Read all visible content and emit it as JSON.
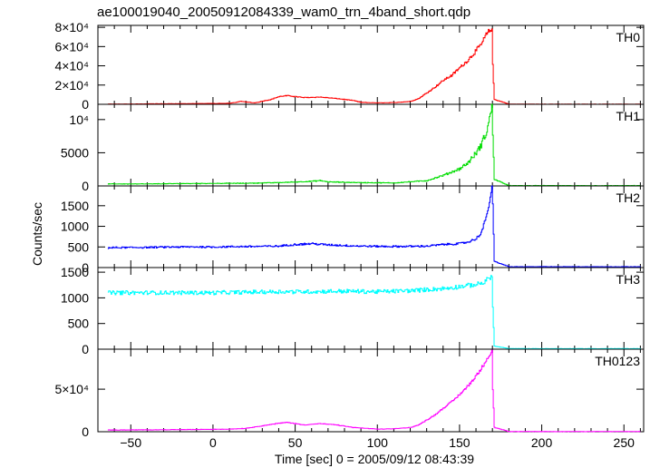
{
  "figure": {
    "title": "ae100019040_20050912084339_wam0_trn_4band_short.qdp",
    "xlabel": "Time [sec] 0 = 2005/09/12 08:43:39",
    "ylabel": "Counts/sec"
  },
  "chart_data": [
    {
      "type": "line",
      "panel_label": "TH0",
      "color": "#ff0000",
      "xlim": [
        -70,
        262
      ],
      "ylim": [
        0,
        82000
      ],
      "yticks": [
        {
          "v": 0,
          "t": "0"
        },
        {
          "v": 20000,
          "t": "2×10⁴"
        },
        {
          "v": 40000,
          "t": "4×10⁴"
        },
        {
          "v": 60000,
          "t": "6×10⁴"
        },
        {
          "v": 80000,
          "t": "8×10⁴"
        }
      ],
      "x": [
        -64,
        -40,
        -20,
        0,
        10,
        17,
        25,
        35,
        40,
        45,
        55,
        65,
        75,
        85,
        90,
        100,
        110,
        120,
        125,
        130,
        135,
        140,
        145,
        150,
        155,
        160,
        163,
        166,
        168,
        169.5,
        170,
        171,
        180,
        200,
        220,
        240,
        260
      ],
      "y": [
        200,
        400,
        600,
        800,
        1000,
        3000,
        1500,
        5000,
        8000,
        9000,
        7000,
        7500,
        6000,
        4000,
        2000,
        1500,
        1800,
        3000,
        6000,
        12000,
        18000,
        25000,
        30000,
        38000,
        46000,
        56000,
        62000,
        72000,
        76000,
        80000,
        40000,
        5000,
        200,
        100,
        100,
        100,
        100
      ],
      "noise": 0.04
    },
    {
      "type": "line",
      "panel_label": "TH1",
      "color": "#00dd00",
      "xlim": [
        -70,
        262
      ],
      "ylim": [
        0,
        12300
      ],
      "yticks": [
        {
          "v": 0,
          "t": "0"
        },
        {
          "v": 5000,
          "t": "5000"
        },
        {
          "v": 10000,
          "t": "10⁴"
        }
      ],
      "x": [
        -64,
        -40,
        -20,
        0,
        20,
        40,
        60,
        65,
        70,
        90,
        110,
        130,
        140,
        150,
        155,
        160,
        163,
        166,
        168,
        169.5,
        170,
        171,
        180,
        200,
        220,
        240,
        260
      ],
      "y": [
        300,
        300,
        350,
        380,
        400,
        500,
        700,
        800,
        600,
        500,
        450,
        800,
        1600,
        2600,
        3500,
        5000,
        6200,
        8000,
        10000,
        12000,
        8000,
        1000,
        50,
        50,
        50,
        50,
        50
      ],
      "noise": 0.08
    },
    {
      "type": "line",
      "panel_label": "TH2",
      "color": "#0000ff",
      "xlim": [
        -70,
        262
      ],
      "ylim": [
        0,
        1980
      ],
      "yticks": [
        {
          "v": 0,
          "t": "0"
        },
        {
          "v": 500,
          "t": "500"
        },
        {
          "v": 1000,
          "t": "1000"
        },
        {
          "v": 1500,
          "t": "1500"
        }
      ],
      "x": [
        -64,
        -40,
        -20,
        0,
        20,
        40,
        50,
        60,
        70,
        90,
        110,
        130,
        140,
        150,
        155,
        160,
        163,
        166,
        168,
        169.5,
        170,
        171,
        180,
        200,
        220,
        240,
        260
      ],
      "y": [
        480,
        490,
        500,
        500,
        510,
        520,
        560,
        580,
        550,
        520,
        510,
        520,
        560,
        580,
        620,
        700,
        850,
        1200,
        1600,
        1950,
        1500,
        150,
        20,
        20,
        20,
        20,
        20
      ],
      "noise": 0.04
    },
    {
      "type": "line",
      "panel_label": "TH3",
      "color": "#00ffff",
      "xlim": [
        -70,
        262
      ],
      "ylim": [
        0,
        1590
      ],
      "yticks": [
        {
          "v": 0,
          "t": "0"
        },
        {
          "v": 500,
          "t": "500"
        },
        {
          "v": 1000,
          "t": "1000"
        },
        {
          "v": 1500,
          "t": "1500"
        }
      ],
      "x": [
        -64,
        -40,
        -20,
        0,
        20,
        40,
        60,
        80,
        100,
        120,
        140,
        150,
        160,
        165,
        168,
        169.5,
        170,
        171,
        180,
        200,
        220,
        240,
        260
      ],
      "y": [
        1100,
        1100,
        1100,
        1100,
        1110,
        1120,
        1120,
        1130,
        1120,
        1140,
        1180,
        1220,
        1260,
        1300,
        1400,
        1420,
        800,
        60,
        10,
        10,
        10,
        10,
        10
      ],
      "noise": 0.035
    },
    {
      "type": "line",
      "panel_label": "TH0123",
      "color": "#ff00ff",
      "xlim": [
        -70,
        262
      ],
      "ylim": [
        0,
        97000
      ],
      "yticks": [
        {
          "v": 0,
          "t": "0"
        },
        {
          "v": 50000,
          "t": "5×10⁴"
        }
      ],
      "x": [
        -64,
        -40,
        -20,
        0,
        10,
        20,
        30,
        40,
        45,
        55,
        65,
        75,
        85,
        100,
        110,
        120,
        125,
        130,
        135,
        140,
        145,
        150,
        155,
        160,
        163,
        166,
        168,
        169.5,
        170,
        171,
        180,
        200,
        220,
        240,
        260
      ],
      "y": [
        2000,
        2200,
        2500,
        2800,
        3000,
        4000,
        7000,
        10000,
        11000,
        8000,
        9500,
        8000,
        5000,
        3000,
        3500,
        5000,
        8000,
        14000,
        20000,
        28000,
        35000,
        44000,
        54000,
        66000,
        74000,
        85000,
        90000,
        95000,
        50000,
        5000,
        200,
        200,
        200,
        200,
        200
      ],
      "noise": 0.03
    }
  ],
  "xaxis": {
    "ticks": [
      {
        "v": -50,
        "t": "−50"
      },
      {
        "v": 0,
        "t": "0"
      },
      {
        "v": 50,
        "t": "50"
      },
      {
        "v": 100,
        "t": "100"
      },
      {
        "v": 150,
        "t": "150"
      },
      {
        "v": 200,
        "t": "200"
      },
      {
        "v": 250,
        "t": "250"
      }
    ]
  }
}
